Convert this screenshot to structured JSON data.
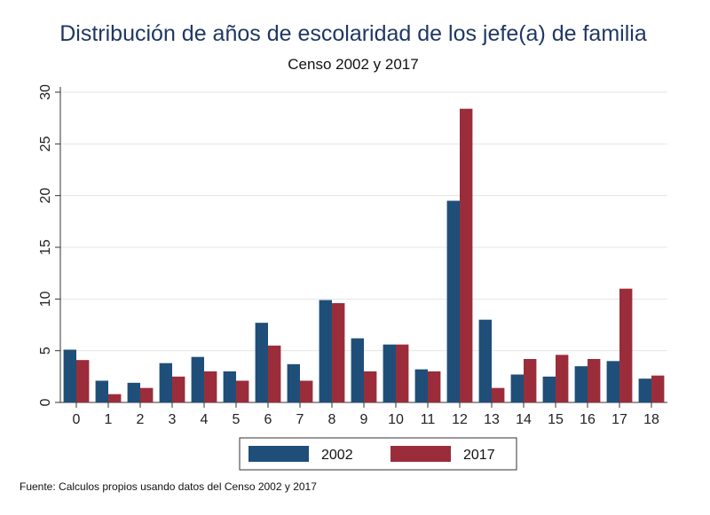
{
  "chart_data": {
    "type": "bar",
    "title": "Distribución de años de escolaridad de los jefe(a) de familia",
    "subtitle": "Censo 2002 y 2017",
    "xlabel": "",
    "ylabel": "",
    "categories": [
      "0",
      "1",
      "2",
      "3",
      "4",
      "5",
      "6",
      "7",
      "8",
      "9",
      "10",
      "11",
      "12",
      "13",
      "14",
      "15",
      "16",
      "17",
      "18"
    ],
    "ylim": [
      0,
      30
    ],
    "yticks": [
      0,
      5,
      10,
      15,
      20,
      25,
      30
    ],
    "grid": true,
    "legend_position": "bottom",
    "series": [
      {
        "name": "2002",
        "color": "#1f4e79",
        "values": [
          5.1,
          2.1,
          1.9,
          3.8,
          4.4,
          3.0,
          7.7,
          3.7,
          9.9,
          6.2,
          5.6,
          3.2,
          19.5,
          8.0,
          2.7,
          2.5,
          3.5,
          4.0,
          2.3
        ]
      },
      {
        "name": "2017",
        "color": "#9b2d3a",
        "values": [
          4.1,
          0.8,
          1.4,
          2.5,
          3.0,
          2.1,
          5.5,
          2.1,
          9.6,
          3.0,
          5.6,
          3.0,
          28.4,
          1.4,
          4.2,
          4.6,
          4.2,
          11.0,
          2.6
        ]
      }
    ]
  },
  "footnote": "Fuente: Calculos propios usando datos del Censo 2002 y 2017"
}
